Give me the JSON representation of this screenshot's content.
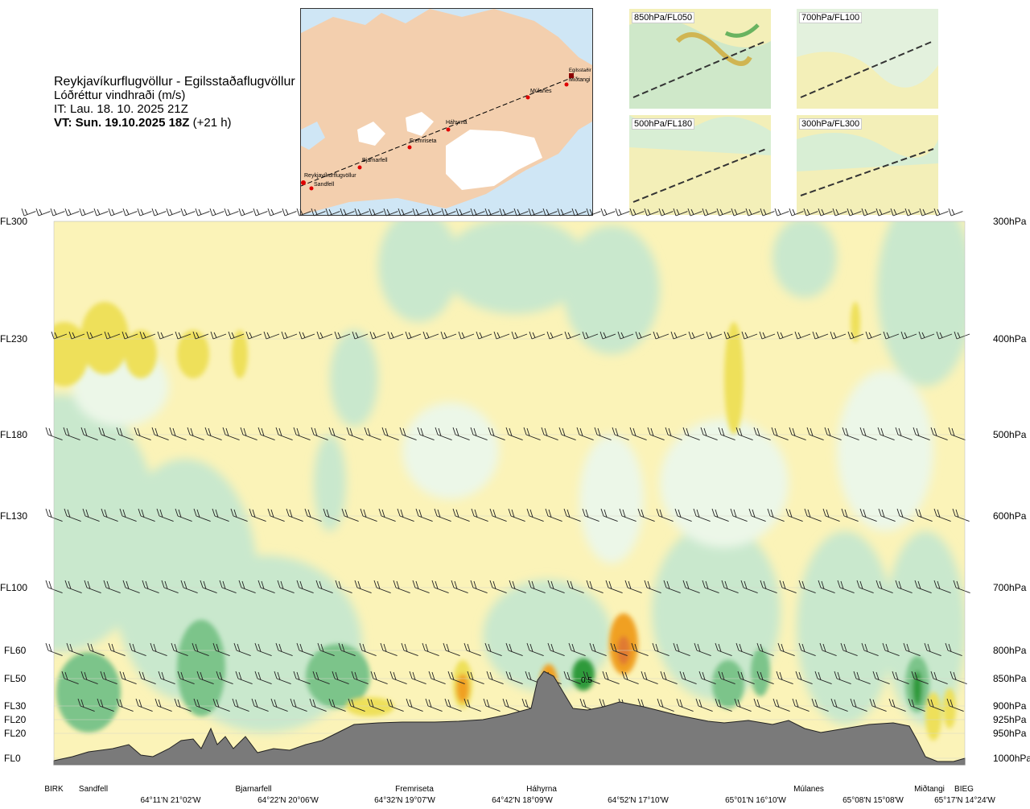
{
  "header": {
    "route": "Reykjavíkurflugvöllur - Egilsstaðaflugvöllur",
    "parameter": "Lóðréttur vindhraði (m/s)",
    "issue_time": "IT: Lau. 18. 10. 2025 21Z",
    "valid_time_bold": "VT: Sun. 19.10.2025 18Z",
    "valid_time_lead": "(+21 h)"
  },
  "map": {
    "points": [
      "Reykjavíkurflugvöllur",
      "Sandfell",
      "Bjarnarfell",
      "Fremriseta",
      "Háhyrna",
      "Múlanes",
      "Miðtangi",
      "Egilsstaðir"
    ],
    "colors": {
      "sea": "#cfe6f5",
      "land": "#f3cfae",
      "glacier": "#ffffff",
      "route": "#000000",
      "point": "#e00000"
    }
  },
  "insets": [
    {
      "label": "850hPa/FL050"
    },
    {
      "label": "700hPa/FL100"
    },
    {
      "label": "500hPa/FL180"
    },
    {
      "label": "300hPa/FL300"
    }
  ],
  "chart_data": {
    "type": "heatmap",
    "title": "",
    "xlabel": "",
    "ylabel": "",
    "left_axis": [
      "FL300",
      "FL230",
      "FL180",
      "FL130",
      "FL100",
      "FL60",
      "FL50",
      "FL30",
      "FL20",
      "FL20",
      "FL0"
    ],
    "right_axis": [
      "300hPa",
      "400hPa",
      "500hPa",
      "600hPa",
      "700hPa",
      "800hPa",
      "850hPa",
      "900hPa",
      "925hPa",
      "950hPa",
      "1000hPa"
    ],
    "pressure_levels_hpa": [
      300,
      400,
      500,
      600,
      700,
      800,
      850,
      900,
      925,
      950,
      1000
    ],
    "waypoints": [
      {
        "name": "BIRK",
        "coord": ""
      },
      {
        "name": "Sandfell",
        "coord": "64°11'N 21°02'W"
      },
      {
        "name": "Bjarnarfell",
        "coord": "64°22'N 20°06'W"
      },
      {
        "name": "Fremriseta",
        "coord": "64°32'N 19°07'W"
      },
      {
        "name": "Háhyrna",
        "coord": "64°42'N 18°09'W"
      },
      {
        "name": "",
        "coord": "64°52'N 17°10'W"
      },
      {
        "name": "",
        "coord": "65°01'N 16°10'W"
      },
      {
        "name": "Múlanes",
        "coord": "65°08'N 15°08'W"
      },
      {
        "name": "Miðtangi",
        "coord": ""
      },
      {
        "name": "BIEG",
        "coord": "65°17'N 14°24'W"
      }
    ],
    "annotation": "0.5",
    "colors": {
      "strong_down": "#2e9a3a",
      "mod_down": "#7cc48a",
      "weak_down": "#c9e8cd",
      "very_weak_down": "#ecf7e8",
      "neutral_up": "#fbf3b8",
      "weak_up": "#f7ec9c",
      "mod_up": "#eee05a",
      "strong_up": "#f0a020",
      "very_strong_up": "#e07a30",
      "terrain": "#7a7a7a"
    }
  }
}
